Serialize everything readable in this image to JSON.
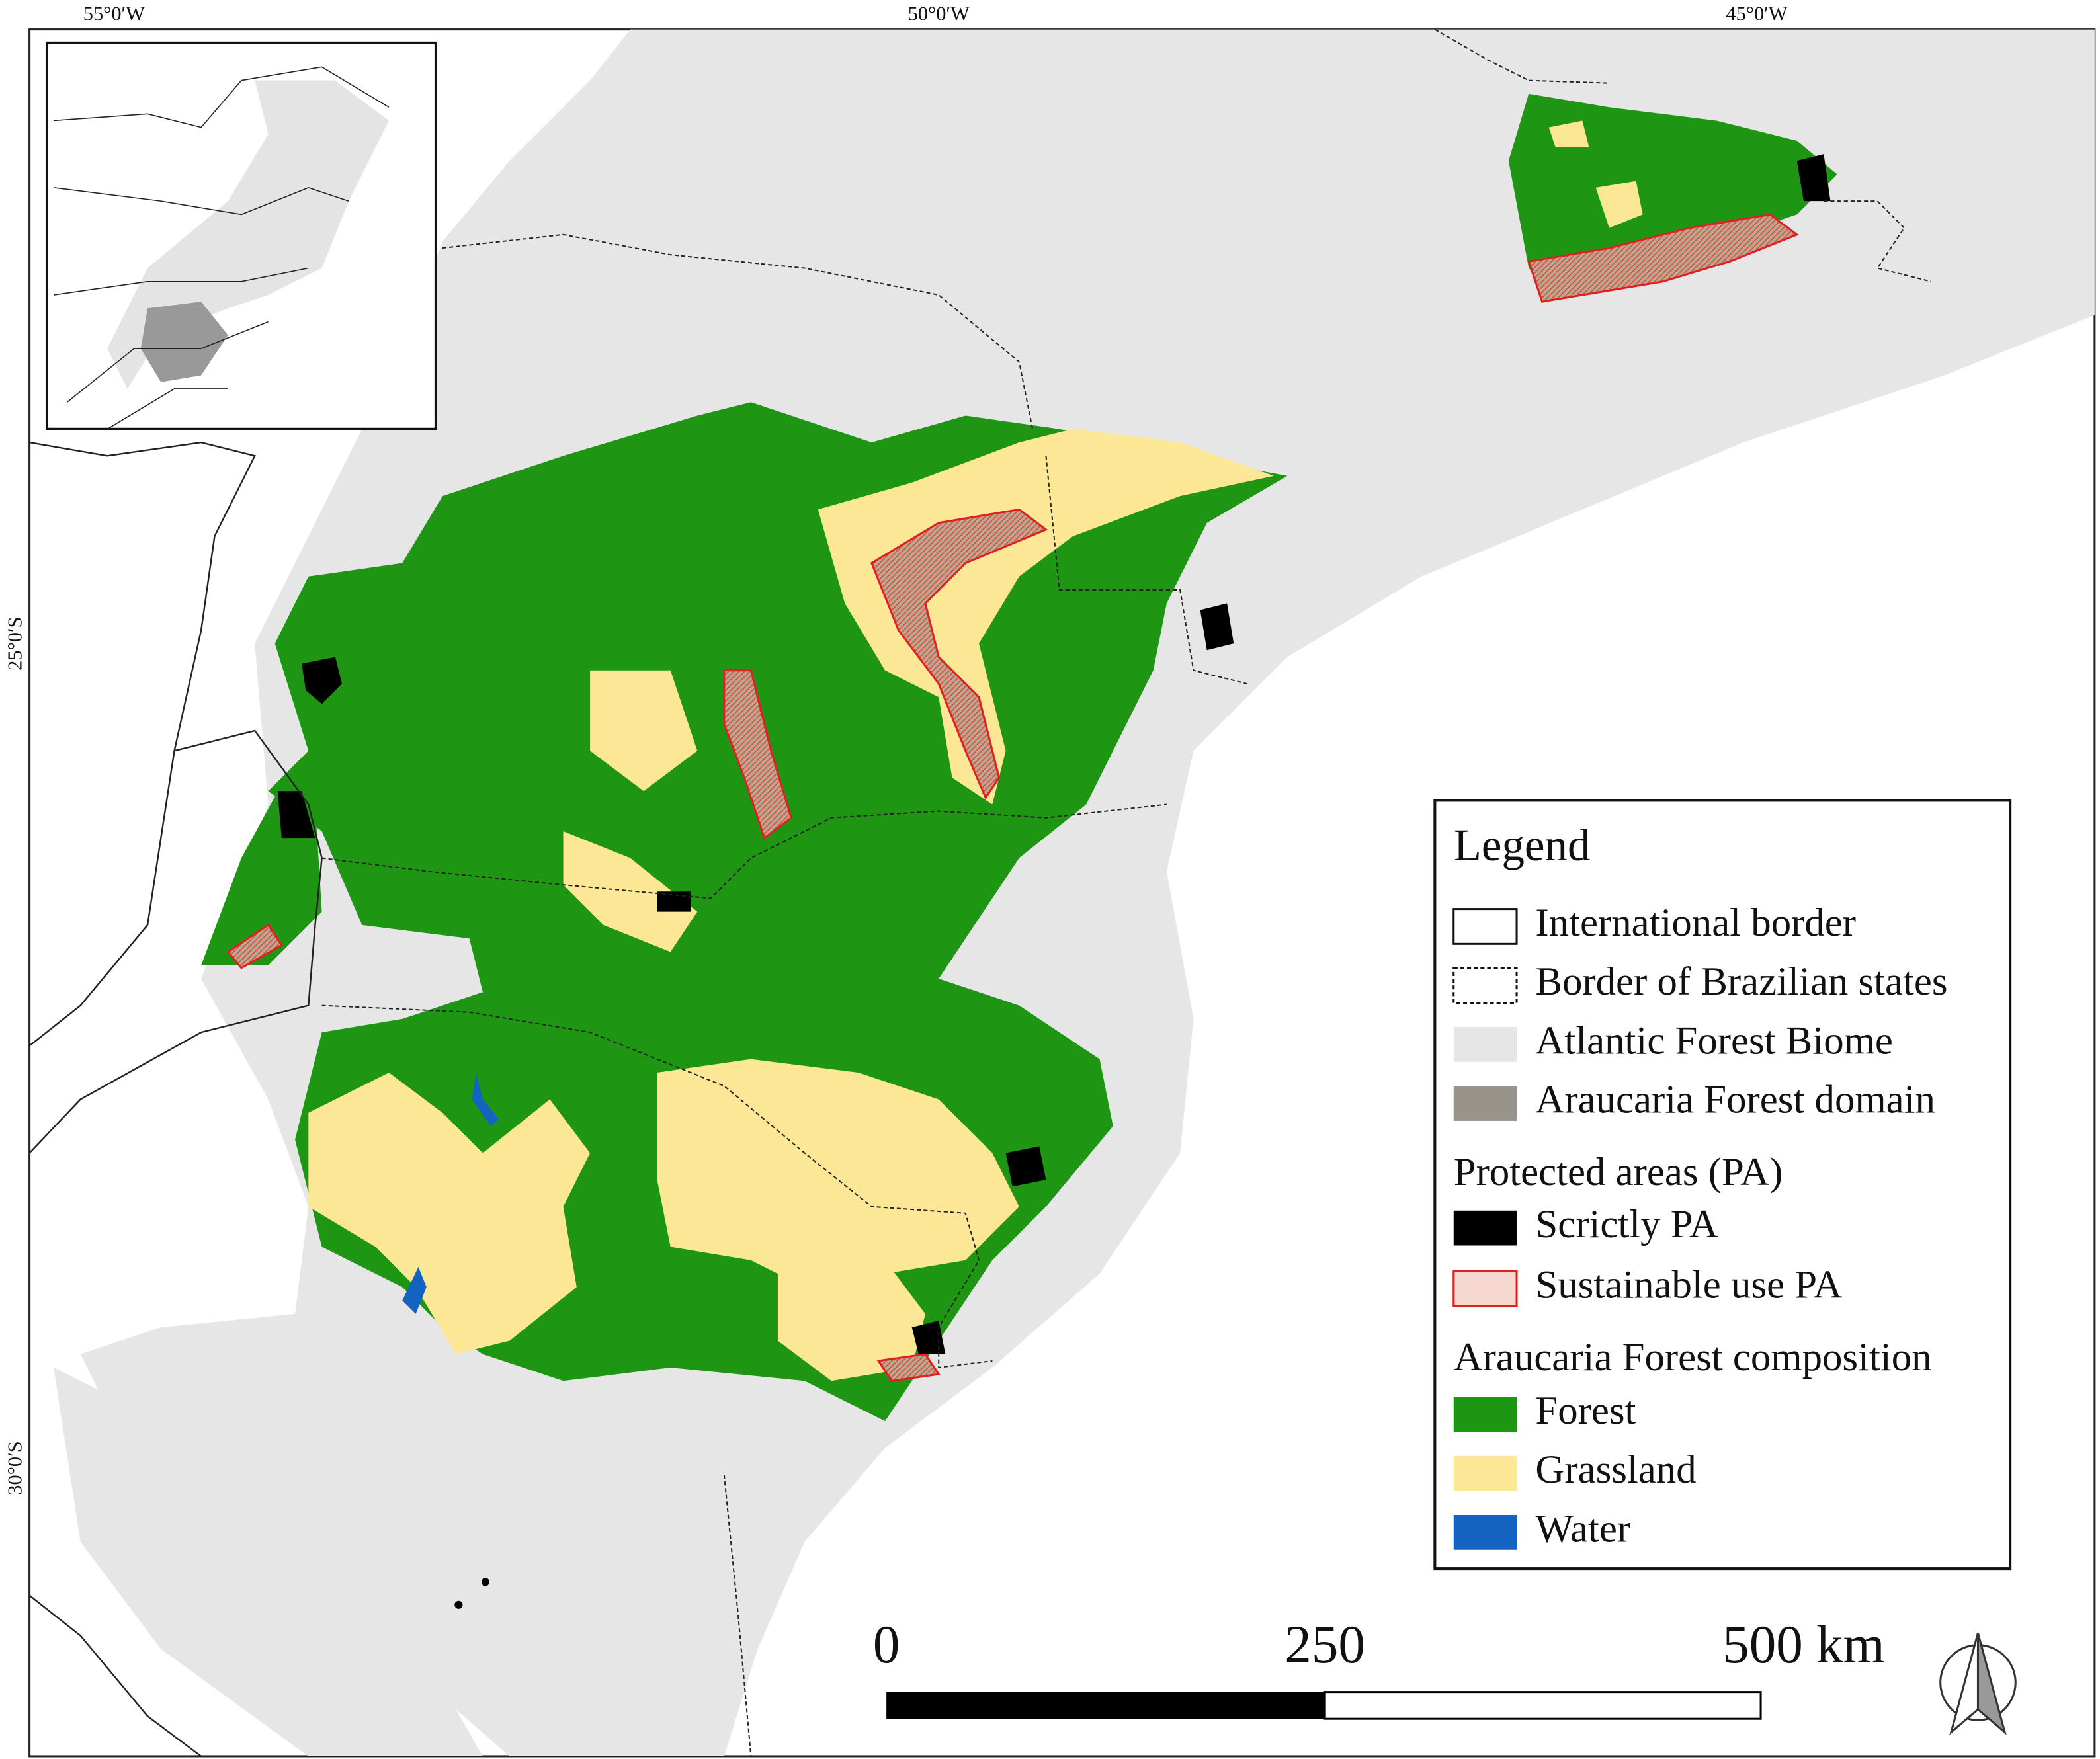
{
  "graticule": {
    "top": [
      "55°0′W",
      "50°0′W",
      "45°0′W"
    ],
    "left": [
      "25°0′S",
      "30°0′S"
    ]
  },
  "legend": {
    "title": "Legend",
    "borders": [
      "International border",
      "Border of Brazilian states",
      "Atlantic Forest Biome",
      "Araucaria Forest domain"
    ],
    "protected_title": "Protected areas (PA)",
    "protected": [
      "Scrictly PA",
      "Sustainable use PA"
    ],
    "composition_title": "Araucaria Forest composition",
    "composition": [
      "Forest",
      "Grassland",
      "Water"
    ]
  },
  "scale_bar": {
    "labels": [
      "0",
      "250",
      "500 km"
    ]
  }
}
